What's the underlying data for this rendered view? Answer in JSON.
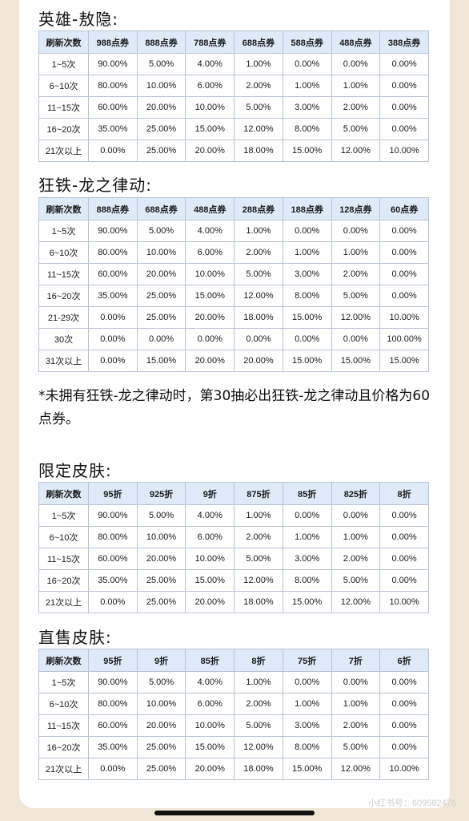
{
  "sections": [
    {
      "title": "英雄-敖隐:",
      "headers": [
        "刷新次数",
        "988点券",
        "888点券",
        "788点券",
        "688点券",
        "588点券",
        "488点券",
        "388点券"
      ],
      "rows": [
        [
          "1~5次",
          "90.00%",
          "5.00%",
          "4.00%",
          "1.00%",
          "0.00%",
          "0.00%",
          "0.00%"
        ],
        [
          "6~10次",
          "80.00%",
          "10.00%",
          "6.00%",
          "2.00%",
          "1.00%",
          "1.00%",
          "0.00%"
        ],
        [
          "11~15次",
          "60.00%",
          "20.00%",
          "10.00%",
          "5.00%",
          "3.00%",
          "2.00%",
          "0.00%"
        ],
        [
          "16~20次",
          "35.00%",
          "25.00%",
          "15.00%",
          "12.00%",
          "8.00%",
          "5.00%",
          "0.00%"
        ],
        [
          "21次以上",
          "0.00%",
          "25.00%",
          "20.00%",
          "18.00%",
          "15.00%",
          "12.00%",
          "10.00%"
        ]
      ]
    },
    {
      "title": "狂铁-龙之律动:",
      "headers": [
        "刷新次数",
        "888点券",
        "688点券",
        "488点券",
        "288点券",
        "188点券",
        "128点券",
        "60点券"
      ],
      "rows": [
        [
          "1~5次",
          "90.00%",
          "5.00%",
          "4.00%",
          "1.00%",
          "0.00%",
          "0.00%",
          "0.00%"
        ],
        [
          "6~10次",
          "80.00%",
          "10.00%",
          "6.00%",
          "2.00%",
          "1.00%",
          "1.00%",
          "0.00%"
        ],
        [
          "11~15次",
          "60.00%",
          "20.00%",
          "10.00%",
          "5.00%",
          "3.00%",
          "2.00%",
          "0.00%"
        ],
        [
          "16~20次",
          "35.00%",
          "25.00%",
          "15.00%",
          "12.00%",
          "8.00%",
          "5.00%",
          "0.00%"
        ],
        [
          "21-29次",
          "0.00%",
          "25.00%",
          "20.00%",
          "18.00%",
          "15.00%",
          "12.00%",
          "10.00%"
        ],
        [
          "30次",
          "0.00%",
          "0.00%",
          "0.00%",
          "0.00%",
          "0.00%",
          "0.00%",
          "100.00%"
        ],
        [
          "31次以上",
          "0.00%",
          "15.00%",
          "20.00%",
          "20.00%",
          "15.00%",
          "15.00%",
          "15.00%"
        ]
      ]
    },
    {
      "title": "限定皮肤:",
      "headers": [
        "刷新次数",
        "95折",
        "925折",
        "9折",
        "875折",
        "85折",
        "825折",
        "8折"
      ],
      "rows": [
        [
          "1~5次",
          "90.00%",
          "5.00%",
          "4.00%",
          "1.00%",
          "0.00%",
          "0.00%",
          "0.00%"
        ],
        [
          "6~10次",
          "80.00%",
          "10.00%",
          "6.00%",
          "2.00%",
          "1.00%",
          "1.00%",
          "0.00%"
        ],
        [
          "11~15次",
          "60.00%",
          "20.00%",
          "10.00%",
          "5.00%",
          "3.00%",
          "2.00%",
          "0.00%"
        ],
        [
          "16~20次",
          "35.00%",
          "25.00%",
          "15.00%",
          "12.00%",
          "8.00%",
          "5.00%",
          "0.00%"
        ],
        [
          "21次以上",
          "0.00%",
          "25.00%",
          "20.00%",
          "18.00%",
          "15.00%",
          "12.00%",
          "10.00%"
        ]
      ]
    },
    {
      "title": "直售皮肤:",
      "headers": [
        "刷新次数",
        "95折",
        "9折",
        "85折",
        "8折",
        "75折",
        "7折",
        "6折"
      ],
      "rows": [
        [
          "1~5次",
          "90.00%",
          "5.00%",
          "4.00%",
          "1.00%",
          "0.00%",
          "0.00%",
          "0.00%"
        ],
        [
          "6~10次",
          "80.00%",
          "10.00%",
          "6.00%",
          "2.00%",
          "1.00%",
          "1.00%",
          "0.00%"
        ],
        [
          "11~15次",
          "60.00%",
          "20.00%",
          "10.00%",
          "5.00%",
          "3.00%",
          "2.00%",
          "0.00%"
        ],
        [
          "16~20次",
          "35.00%",
          "25.00%",
          "15.00%",
          "12.00%",
          "8.00%",
          "5.00%",
          "0.00%"
        ],
        [
          "21次以上",
          "0.00%",
          "25.00%",
          "20.00%",
          "18.00%",
          "15.00%",
          "12.00%",
          "10.00%"
        ]
      ]
    }
  ],
  "note": "*未拥有狂铁-龙之律动时，第30抽必出狂铁-龙之律动且价格为60点券。",
  "watermark": "小红书号：609582476",
  "colors": {
    "header_bg": "#dfeaf8",
    "border": "#b9c3d1",
    "page_bg": "#efe6d6"
  }
}
